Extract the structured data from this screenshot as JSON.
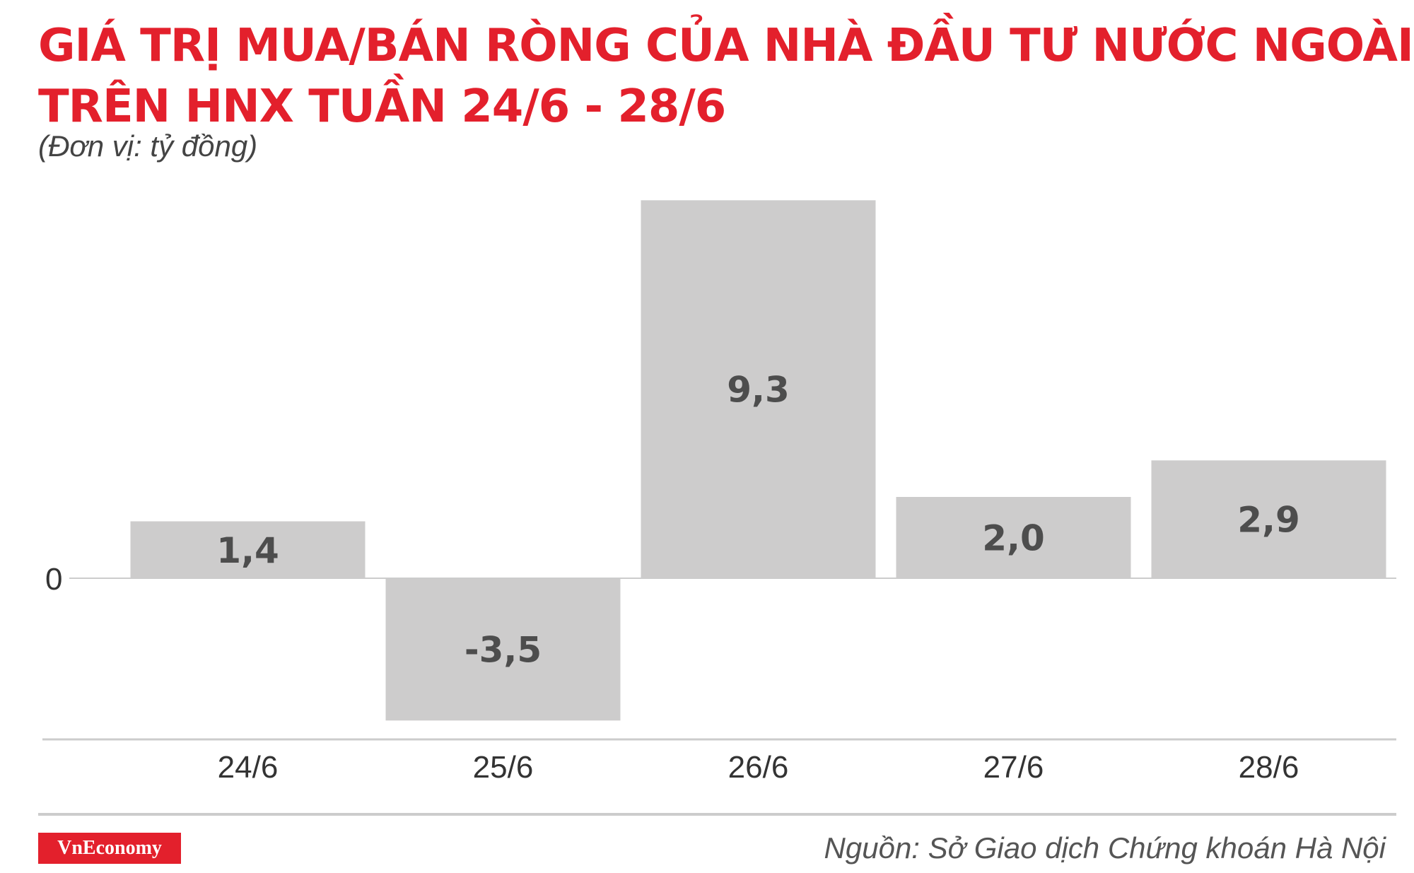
{
  "header": {
    "title_line1": "GIÁ TRỊ MUA/BÁN RÒNG CỦA NHÀ ĐẦU TƯ NƯỚC NGOÀI",
    "title_line2": "TRÊN HNX TUẦN 24/6 - 28/6",
    "unit_note": "(Đơn vị: tỷ đồng)"
  },
  "footer": {
    "logo_text": "VnEconomy",
    "source": "Nguồn: Sở Giao dịch Chứng khoán Hà Nội"
  },
  "colors": {
    "title": "#e3202c",
    "bar": "#cdcccc",
    "bar_label": "#4d4d4d",
    "axis_text": "#333333",
    "rule": "#cccccc",
    "logo_bg": "#e3202c"
  },
  "chart_data": {
    "type": "bar",
    "title": "GIÁ TRỊ MUA/BÁN RÒNG CỦA NHÀ ĐẦU TƯ NƯỚC NGOÀI TRÊN HNX TUẦN 24/6 - 28/6",
    "subtitle": "(Đơn vị: tỷ đồng)",
    "categories": [
      "24/6",
      "25/6",
      "26/6",
      "27/6",
      "28/6"
    ],
    "values": [
      1.4,
      -3.5,
      9.3,
      2.0,
      2.9
    ],
    "value_labels": [
      "1,4",
      "-3,5",
      "9,3",
      "2,0",
      "2,9"
    ],
    "y_ticks": [
      0
    ],
    "y_tick_labels": [
      "0"
    ],
    "xlabel": "",
    "ylabel": "",
    "grid": false,
    "legend": "none"
  }
}
